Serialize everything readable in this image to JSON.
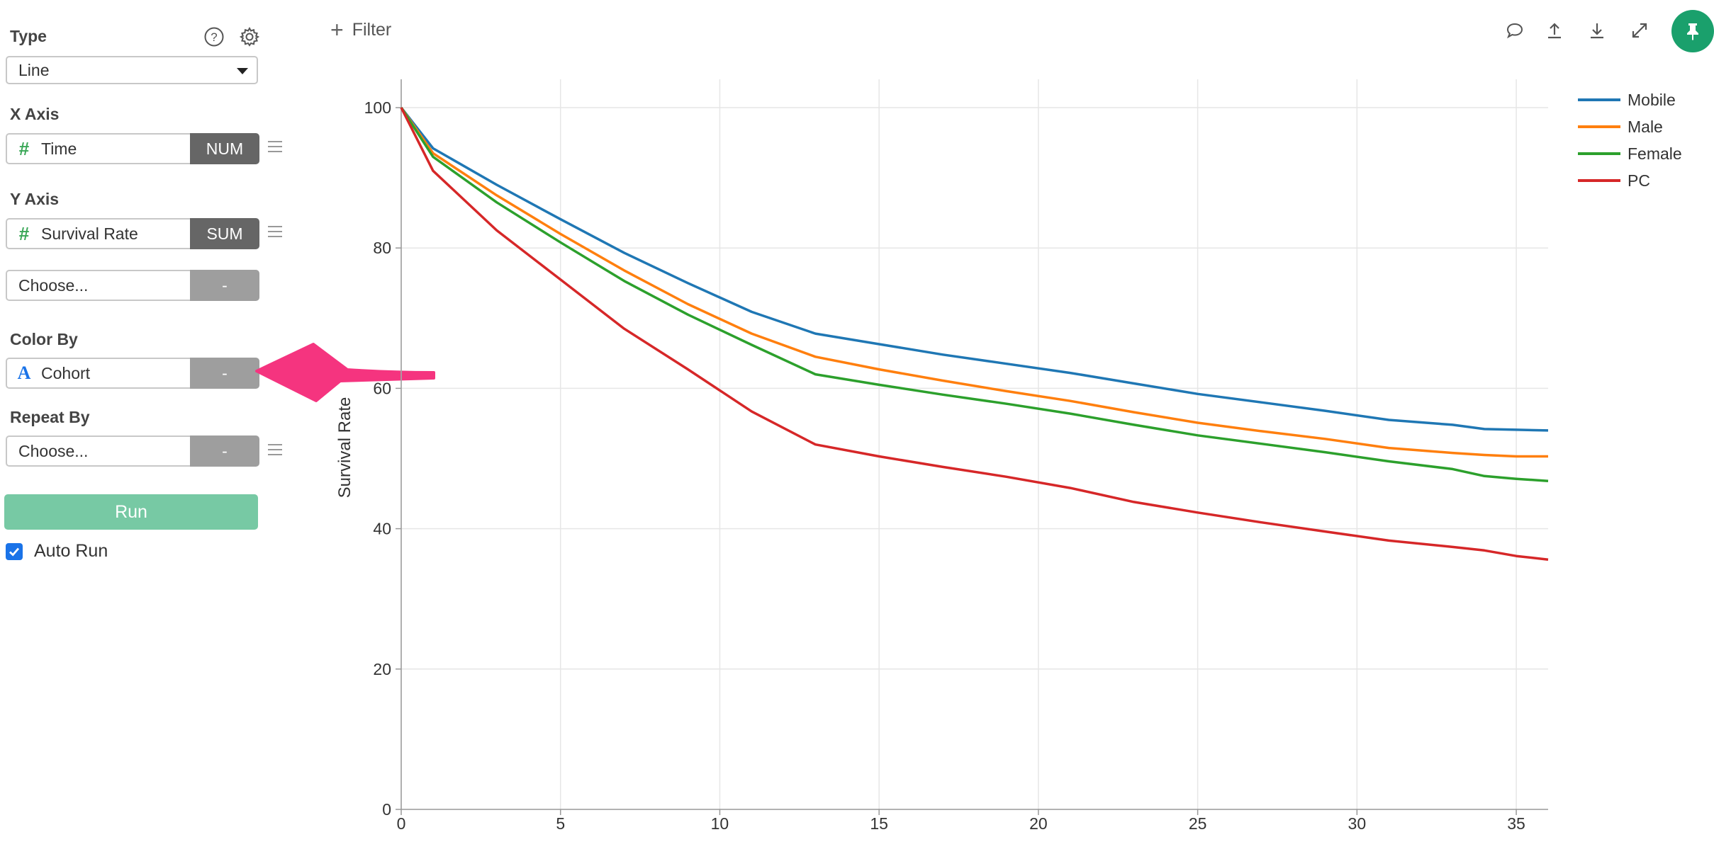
{
  "sidebar": {
    "type": {
      "label": "Type",
      "value": "Line"
    },
    "x_axis": {
      "label": "X Axis",
      "field": "Time",
      "agg": "NUM"
    },
    "y_axis": {
      "label": "Y Axis",
      "field": "Survival Rate",
      "agg": "SUM",
      "extra_placeholder": "Choose...",
      "extra_agg": "-"
    },
    "color_by": {
      "label": "Color By",
      "field": "Cohort",
      "agg": "-"
    },
    "repeat_by": {
      "label": "Repeat By",
      "placeholder": "Choose...",
      "agg": "-"
    },
    "run_label": "Run",
    "auto_run_label": "Auto Run",
    "auto_run_checked": true
  },
  "toolbar": {
    "filter_label": "Filter",
    "icons": [
      "comment-icon",
      "upload-icon",
      "download-icon",
      "expand-icon",
      "pin-icon"
    ]
  },
  "colors": {
    "mobile": "#1f77b4",
    "male": "#ff7f0e",
    "female": "#2ca02c",
    "pc": "#d62728",
    "accent": "#1aa06c",
    "arrow": "#f5347f"
  },
  "chart_data": {
    "type": "line",
    "title": "",
    "xlabel": "",
    "ylabel": "Survival Rate",
    "xlim": [
      0,
      36
    ],
    "ylim": [
      0,
      100
    ],
    "x_ticks": [
      0,
      5,
      10,
      15,
      20,
      25,
      30,
      35
    ],
    "y_ticks": [
      0,
      20,
      40,
      60,
      80,
      100
    ],
    "grid": true,
    "legend": "top-right",
    "x": [
      0,
      1,
      3,
      5,
      7,
      9,
      11,
      13,
      15,
      17,
      19,
      21,
      23,
      25,
      27,
      29,
      31,
      33,
      34,
      35,
      36
    ],
    "series": [
      {
        "name": "Mobile",
        "color": "#1f77b4",
        "values": [
          100,
          94.2,
          89,
          84.1,
          79.3,
          75,
          70.9,
          67.8,
          66.3,
          64.8,
          63.5,
          62.2,
          60.7,
          59.2,
          58,
          56.8,
          55.5,
          54.8,
          54.2,
          54.1,
          54.0
        ]
      },
      {
        "name": "Male",
        "color": "#ff7f0e",
        "values": [
          100,
          93.5,
          87.5,
          82,
          76.8,
          72,
          67.8,
          64.5,
          62.7,
          61.1,
          59.6,
          58.2,
          56.6,
          55.1,
          53.9,
          52.8,
          51.5,
          50.8,
          50.5,
          50.3,
          50.3
        ]
      },
      {
        "name": "Female",
        "color": "#2ca02c",
        "values": [
          100,
          93,
          86.5,
          80.8,
          75.3,
          70.5,
          66.2,
          62,
          60.5,
          59.1,
          57.8,
          56.4,
          54.8,
          53.3,
          52.1,
          50.9,
          49.6,
          48.5,
          47.5,
          47.1,
          46.8
        ]
      },
      {
        "name": "PC",
        "color": "#d62728",
        "values": [
          100,
          91,
          82.5,
          75.5,
          68.5,
          62.7,
          56.7,
          52,
          50.3,
          48.8,
          47.4,
          45.8,
          43.8,
          42.3,
          40.9,
          39.6,
          38.3,
          37.4,
          36.9,
          36.1,
          35.6
        ]
      }
    ]
  }
}
